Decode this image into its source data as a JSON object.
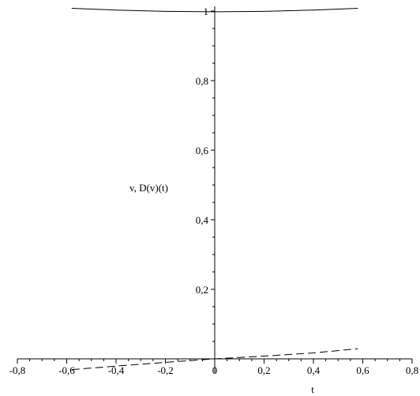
{
  "chart_data": {
    "type": "line",
    "title": "",
    "xlabel": "t",
    "ylabel": "v, D(v)(t)",
    "xlim": [
      -0.8,
      0.8
    ],
    "ylim": [
      0,
      1.0
    ],
    "grid": false,
    "legend": "none",
    "x_ticks": [
      {
        "value": -0.8,
        "label": "-0,8"
      },
      {
        "value": -0.6,
        "label": "-0,6"
      },
      {
        "value": -0.4,
        "label": "-0,4"
      },
      {
        "value": -0.2,
        "label": "-0,2"
      },
      {
        "value": 0.0,
        "label": "0"
      },
      {
        "value": 0.2,
        "label": "0,2"
      },
      {
        "value": 0.4,
        "label": "0,4"
      },
      {
        "value": 0.6,
        "label": "0,6"
      },
      {
        "value": 0.8,
        "label": "0,8"
      }
    ],
    "y_ticks": [
      {
        "value": 0.2,
        "label": "0,2"
      },
      {
        "value": 0.4,
        "label": "0,4"
      },
      {
        "value": 0.6,
        "label": "0,6"
      },
      {
        "value": 0.8,
        "label": "0,8"
      },
      {
        "value": 1.0,
        "label": "1"
      }
    ],
    "series": [
      {
        "style": "solid",
        "color": "#000000",
        "x": [
          -0.58,
          -0.4,
          -0.2,
          0.0,
          0.2,
          0.4,
          0.58
        ],
        "y": [
          1.008,
          1.003,
          0.999,
          0.998,
          0.999,
          1.003,
          1.008
        ]
      },
      {
        "style": "dashed",
        "color": "#000000",
        "x": [
          -0.58,
          -0.4,
          -0.2,
          0.0,
          0.2,
          0.4,
          0.58
        ],
        "y": [
          -0.031,
          -0.021,
          -0.01,
          0.0,
          0.008,
          0.017,
          0.029
        ]
      }
    ]
  }
}
